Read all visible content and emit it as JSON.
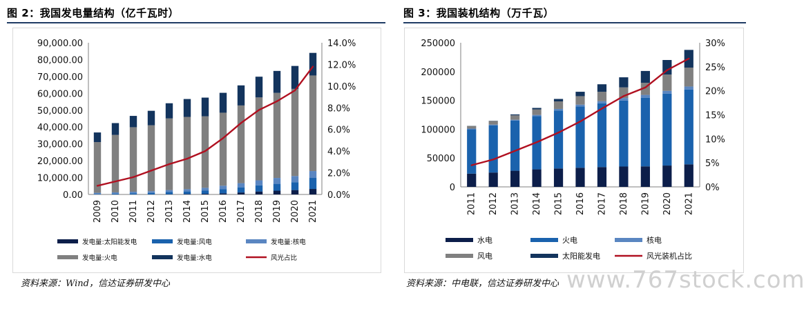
{
  "figures": [
    {
      "title": "图 2：我国发电量结构（亿千瓦时）",
      "source": "资料来源：Wind，信达证券研发中心"
    },
    {
      "title": "图 3：我国装机结构（万千瓦）",
      "source": "资料来源：中电联，信达证券研发中心"
    }
  ],
  "watermark": "www.767stock.com",
  "colors": {
    "dark_navy": "#0c1e4a",
    "blue": "#1a62ad",
    "light_blue": "#5a86c1",
    "gray": "#808080",
    "steel_navy": "#13345d",
    "red": "#b01020",
    "rule": "#1f3b63"
  },
  "chart_data": [
    {
      "type": "bar",
      "stacked": true,
      "categories": [
        "2009",
        "2010",
        "2011",
        "2012",
        "2013",
        "2014",
        "2015",
        "2016",
        "2017",
        "2018",
        "2019",
        "2020",
        "2021"
      ],
      "y_ticks": [
        "0.00",
        "10,000.00",
        "20,000.00",
        "30,000.00",
        "40,000.00",
        "50,000.00",
        "60,000.00",
        "70,000.00",
        "80,000.00",
        "90,000.00"
      ],
      "y2_ticks": [
        "0.0%",
        "2.0%",
        "4.0%",
        "6.0%",
        "8.0%",
        "10.0%",
        "12.0%",
        "14.0%"
      ],
      "ylim": [
        0,
        90000
      ],
      "y2lim": [
        0,
        14
      ],
      "series": [
        {
          "name": "发电量:太阳能发电",
          "color": "#0c1e4a",
          "values": [
            0,
            0,
            0,
            0,
            90,
            235,
            395,
            665,
            1180,
            1770,
            2240,
            2610,
            3260
          ]
        },
        {
          "name": "发电量:风电",
          "color": "#1a62ad",
          "values": [
            280,
            500,
            740,
            960,
            1400,
            1560,
            1860,
            2410,
            3050,
            3660,
            4060,
            4670,
            6550
          ]
        },
        {
          "name": "发电量:核电",
          "color": "#5a86c1",
          "values": [
            700,
            740,
            870,
            980,
            1120,
            1330,
            1700,
            2130,
            2480,
            2940,
            3490,
            3660,
            4080
          ]
        },
        {
          "name": "发电量:火电",
          "color": "#808080",
          "values": [
            30100,
            34100,
            38300,
            39100,
            42500,
            42900,
            42400,
            43300,
            46100,
            49200,
            50500,
            51700,
            56700
          ]
        },
        {
          "name": "发电量:水电",
          "color": "#13345d",
          "values": [
            5700,
            7000,
            6700,
            8600,
            9000,
            10600,
            11100,
            11800,
            11900,
            12300,
            13000,
            13600,
            13400
          ]
        }
      ],
      "line": {
        "name": "风光占比",
        "color": "#b01020",
        "axis": "right",
        "values": [
          0.8,
          1.2,
          1.6,
          2.2,
          2.8,
          3.3,
          4.0,
          5.2,
          6.6,
          7.8,
          8.6,
          9.6,
          11.8
        ]
      }
    },
    {
      "type": "bar",
      "stacked": true,
      "categories": [
        "2011",
        "2012",
        "2013",
        "2014",
        "2015",
        "2016",
        "2017",
        "2018",
        "2019",
        "2020",
        "2021"
      ],
      "y_ticks": [
        "0",
        "50000",
        "100000",
        "150000",
        "200000",
        "250000"
      ],
      "y2_ticks": [
        "0%",
        "5%",
        "10%",
        "15%",
        "20%",
        "25%",
        "30%"
      ],
      "ylim": [
        0,
        250000
      ],
      "y2lim": [
        0,
        30
      ],
      "series": [
        {
          "name": "水电",
          "color": "#0c1e4a",
          "values": [
            23000,
            24900,
            28000,
            30400,
            31900,
            33200,
            34400,
            35300,
            35600,
            37000,
            39100
          ]
        },
        {
          "name": "火电",
          "color": "#1a62ad",
          "values": [
            76800,
            81900,
            87000,
            92400,
            100600,
            106100,
            110600,
            114400,
            119100,
            124600,
            129700
          ]
        },
        {
          "name": "核电",
          "color": "#5a86c1",
          "values": [
            1260,
            1260,
            1470,
            2010,
            2720,
            3360,
            3580,
            4470,
            4870,
            4990,
            5330
          ]
        },
        {
          "name": "风电",
          "color": "#808080",
          "values": [
            4620,
            6140,
            7650,
            9660,
            13100,
            14700,
            16400,
            18400,
            21000,
            28200,
            32800
          ]
        },
        {
          "name": "太阳能发电",
          "color": "#13345d",
          "values": [
            200,
            340,
            1590,
            2490,
            4220,
            7630,
            13000,
            17500,
            20500,
            25300,
            30700
          ]
        }
      ],
      "line": {
        "name": "风光装机占比",
        "color": "#b01020",
        "axis": "right",
        "values": [
          4.5,
          5.7,
          7.5,
          9.3,
          11.3,
          13.6,
          16.3,
          18.9,
          20.7,
          24.3,
          26.7
        ]
      }
    }
  ]
}
